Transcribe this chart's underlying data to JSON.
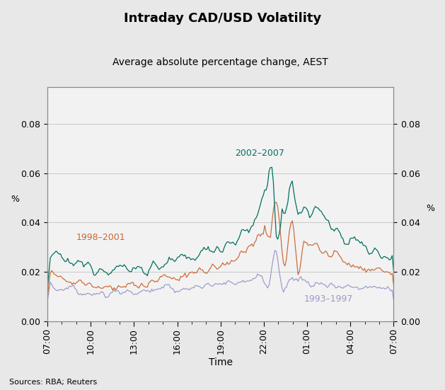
{
  "title": "Intraday CAD/USD Volatility",
  "subtitle": "Average absolute percentage change, AEST",
  "xlabel": "Time",
  "ylabel_left": "%",
  "ylabel_right": "%",
  "source": "Sources: RBA; Reuters",
  "ylim": [
    0.0,
    0.095
  ],
  "yticks": [
    0.0,
    0.02,
    0.04,
    0.06,
    0.08
  ],
  "xtick_labels": [
    "07:00",
    "10:00",
    "13:00",
    "16:00",
    "19:00",
    "22:00",
    "01:00",
    "04:00",
    "07:00"
  ],
  "series_colors": {
    "1993-1997": "#9999cc",
    "1998-2001": "#cc6633",
    "2002-2007": "#007060"
  },
  "series_labels": {
    "1993-1997": "1993–1997",
    "1998-2001": "1998–2001",
    "2002-2007": "2002–2007"
  },
  "background_color": "#e8e8e8",
  "plot_background": "#f2f2f2",
  "grid_color": "#cccccc",
  "n_points": 240
}
